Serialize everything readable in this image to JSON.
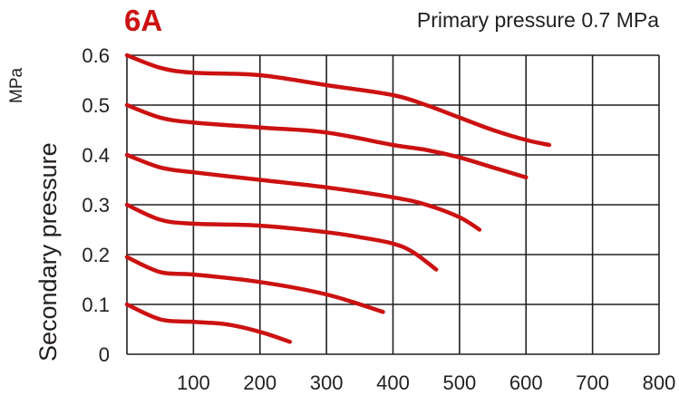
{
  "header": {
    "badge": "6A",
    "subtitle": "Primary pressure 0.7 MPa"
  },
  "colors": {
    "curve": "#cc1111",
    "badge": "#cc1111",
    "grid": "#231f20",
    "text": "#231f20"
  },
  "chart_data": {
    "type": "line",
    "title": "",
    "xlabel": "",
    "ylabel": "Secondary pressure",
    "y_unit": "MPa",
    "xlim": [
      0,
      800
    ],
    "ylim": [
      0,
      0.6
    ],
    "x_ticks": [
      "100",
      "200",
      "300",
      "400",
      "500",
      "600",
      "700",
      "800"
    ],
    "y_ticks": [
      "0",
      "0.1",
      "0.2",
      "0.3",
      "0.4",
      "0.5",
      "0.6"
    ],
    "grid": true,
    "legend": "none",
    "series": [
      {
        "points": [
          [
            0,
            0.6
          ],
          [
            50,
            0.575
          ],
          [
            100,
            0.565
          ],
          [
            200,
            0.56
          ],
          [
            300,
            0.54
          ],
          [
            400,
            0.52
          ],
          [
            450,
            0.5
          ],
          [
            500,
            0.475
          ],
          [
            550,
            0.45
          ],
          [
            600,
            0.43
          ],
          [
            635,
            0.42
          ]
        ]
      },
      {
        "points": [
          [
            0,
            0.5
          ],
          [
            50,
            0.475
          ],
          [
            100,
            0.465
          ],
          [
            200,
            0.455
          ],
          [
            300,
            0.445
          ],
          [
            400,
            0.42
          ],
          [
            450,
            0.41
          ],
          [
            500,
            0.395
          ],
          [
            550,
            0.375
          ],
          [
            600,
            0.355
          ]
        ]
      },
      {
        "points": [
          [
            0,
            0.4
          ],
          [
            50,
            0.375
          ],
          [
            100,
            0.365
          ],
          [
            200,
            0.35
          ],
          [
            300,
            0.335
          ],
          [
            400,
            0.315
          ],
          [
            450,
            0.3
          ],
          [
            500,
            0.275
          ],
          [
            530,
            0.25
          ]
        ]
      },
      {
        "points": [
          [
            0,
            0.3
          ],
          [
            50,
            0.27
          ],
          [
            100,
            0.262
          ],
          [
            200,
            0.258
          ],
          [
            300,
            0.245
          ],
          [
            350,
            0.235
          ],
          [
            400,
            0.222
          ],
          [
            430,
            0.205
          ],
          [
            465,
            0.17
          ]
        ]
      },
      {
        "points": [
          [
            0,
            0.195
          ],
          [
            50,
            0.165
          ],
          [
            100,
            0.16
          ],
          [
            200,
            0.145
          ],
          [
            300,
            0.12
          ],
          [
            385,
            0.085
          ]
        ]
      },
      {
        "points": [
          [
            0,
            0.1
          ],
          [
            50,
            0.07
          ],
          [
            100,
            0.065
          ],
          [
            150,
            0.06
          ],
          [
            200,
            0.045
          ],
          [
            245,
            0.025
          ]
        ]
      }
    ]
  }
}
